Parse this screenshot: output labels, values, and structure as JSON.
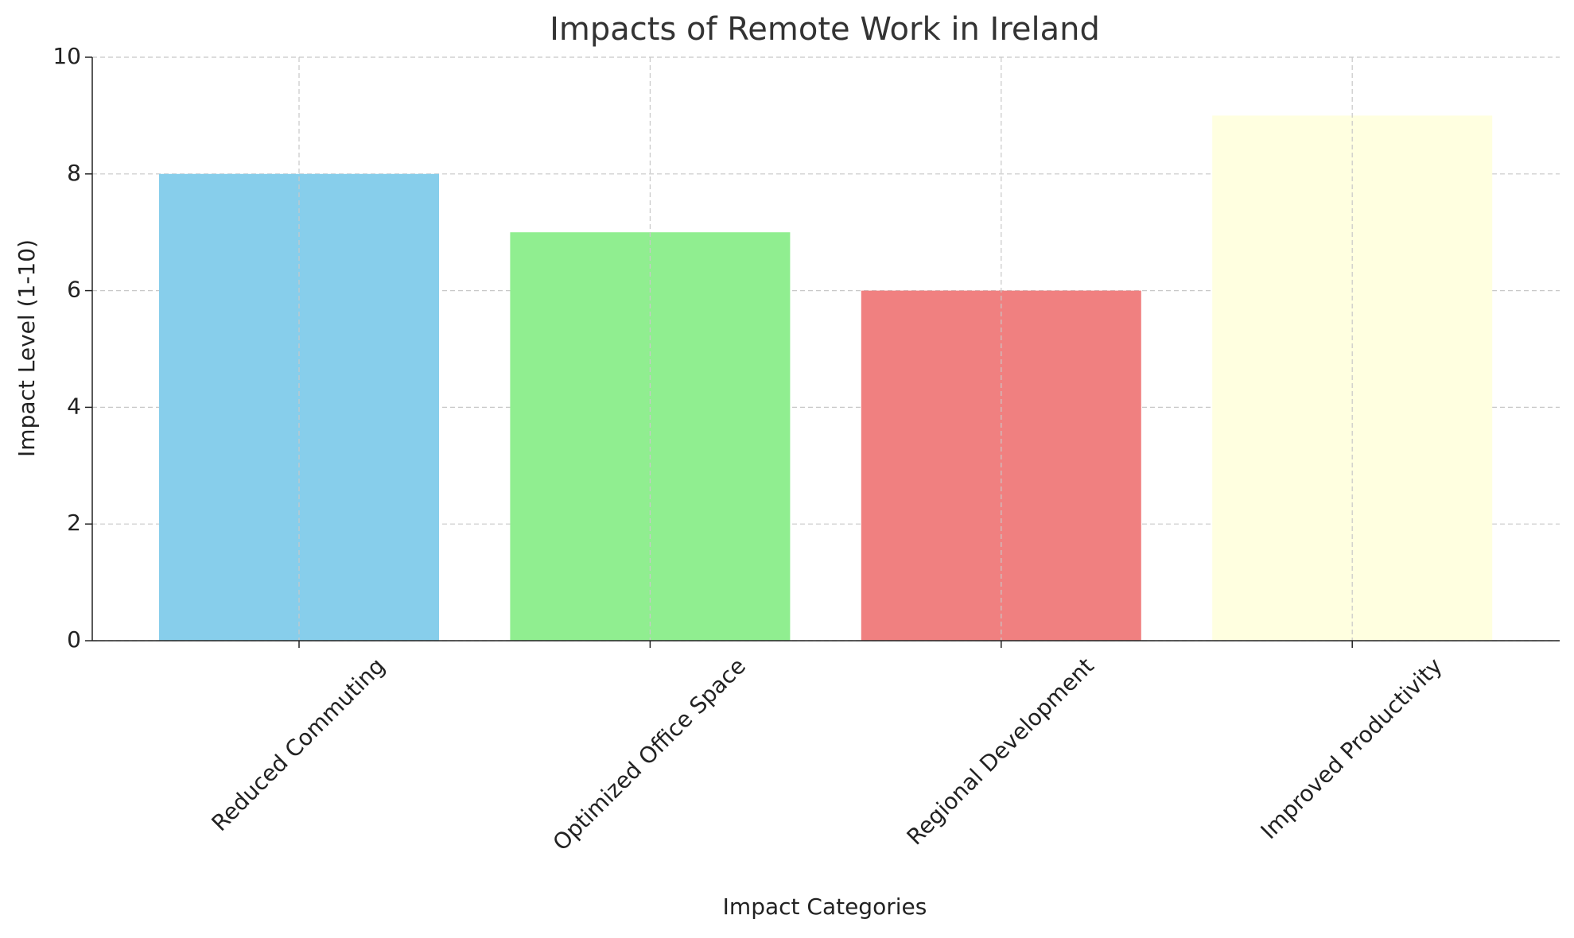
{
  "chart_data": {
    "type": "bar",
    "title": "Impacts of Remote Work in Ireland",
    "x_label": "Impact Categories",
    "y_label": "Impact Level (1-10)",
    "categories": [
      "Reduced Commuting",
      "Optimized Office Space",
      "Regional Development",
      "Improved Productivity"
    ],
    "values": [
      8,
      7,
      6,
      9
    ],
    "colors": [
      "#87ceeb",
      "#90ee90",
      "#f08080",
      "#ffffe0"
    ],
    "ylim": [
      0,
      10
    ],
    "yticks": [
      0,
      2,
      4,
      6,
      8,
      10
    ],
    "grid": true
  }
}
